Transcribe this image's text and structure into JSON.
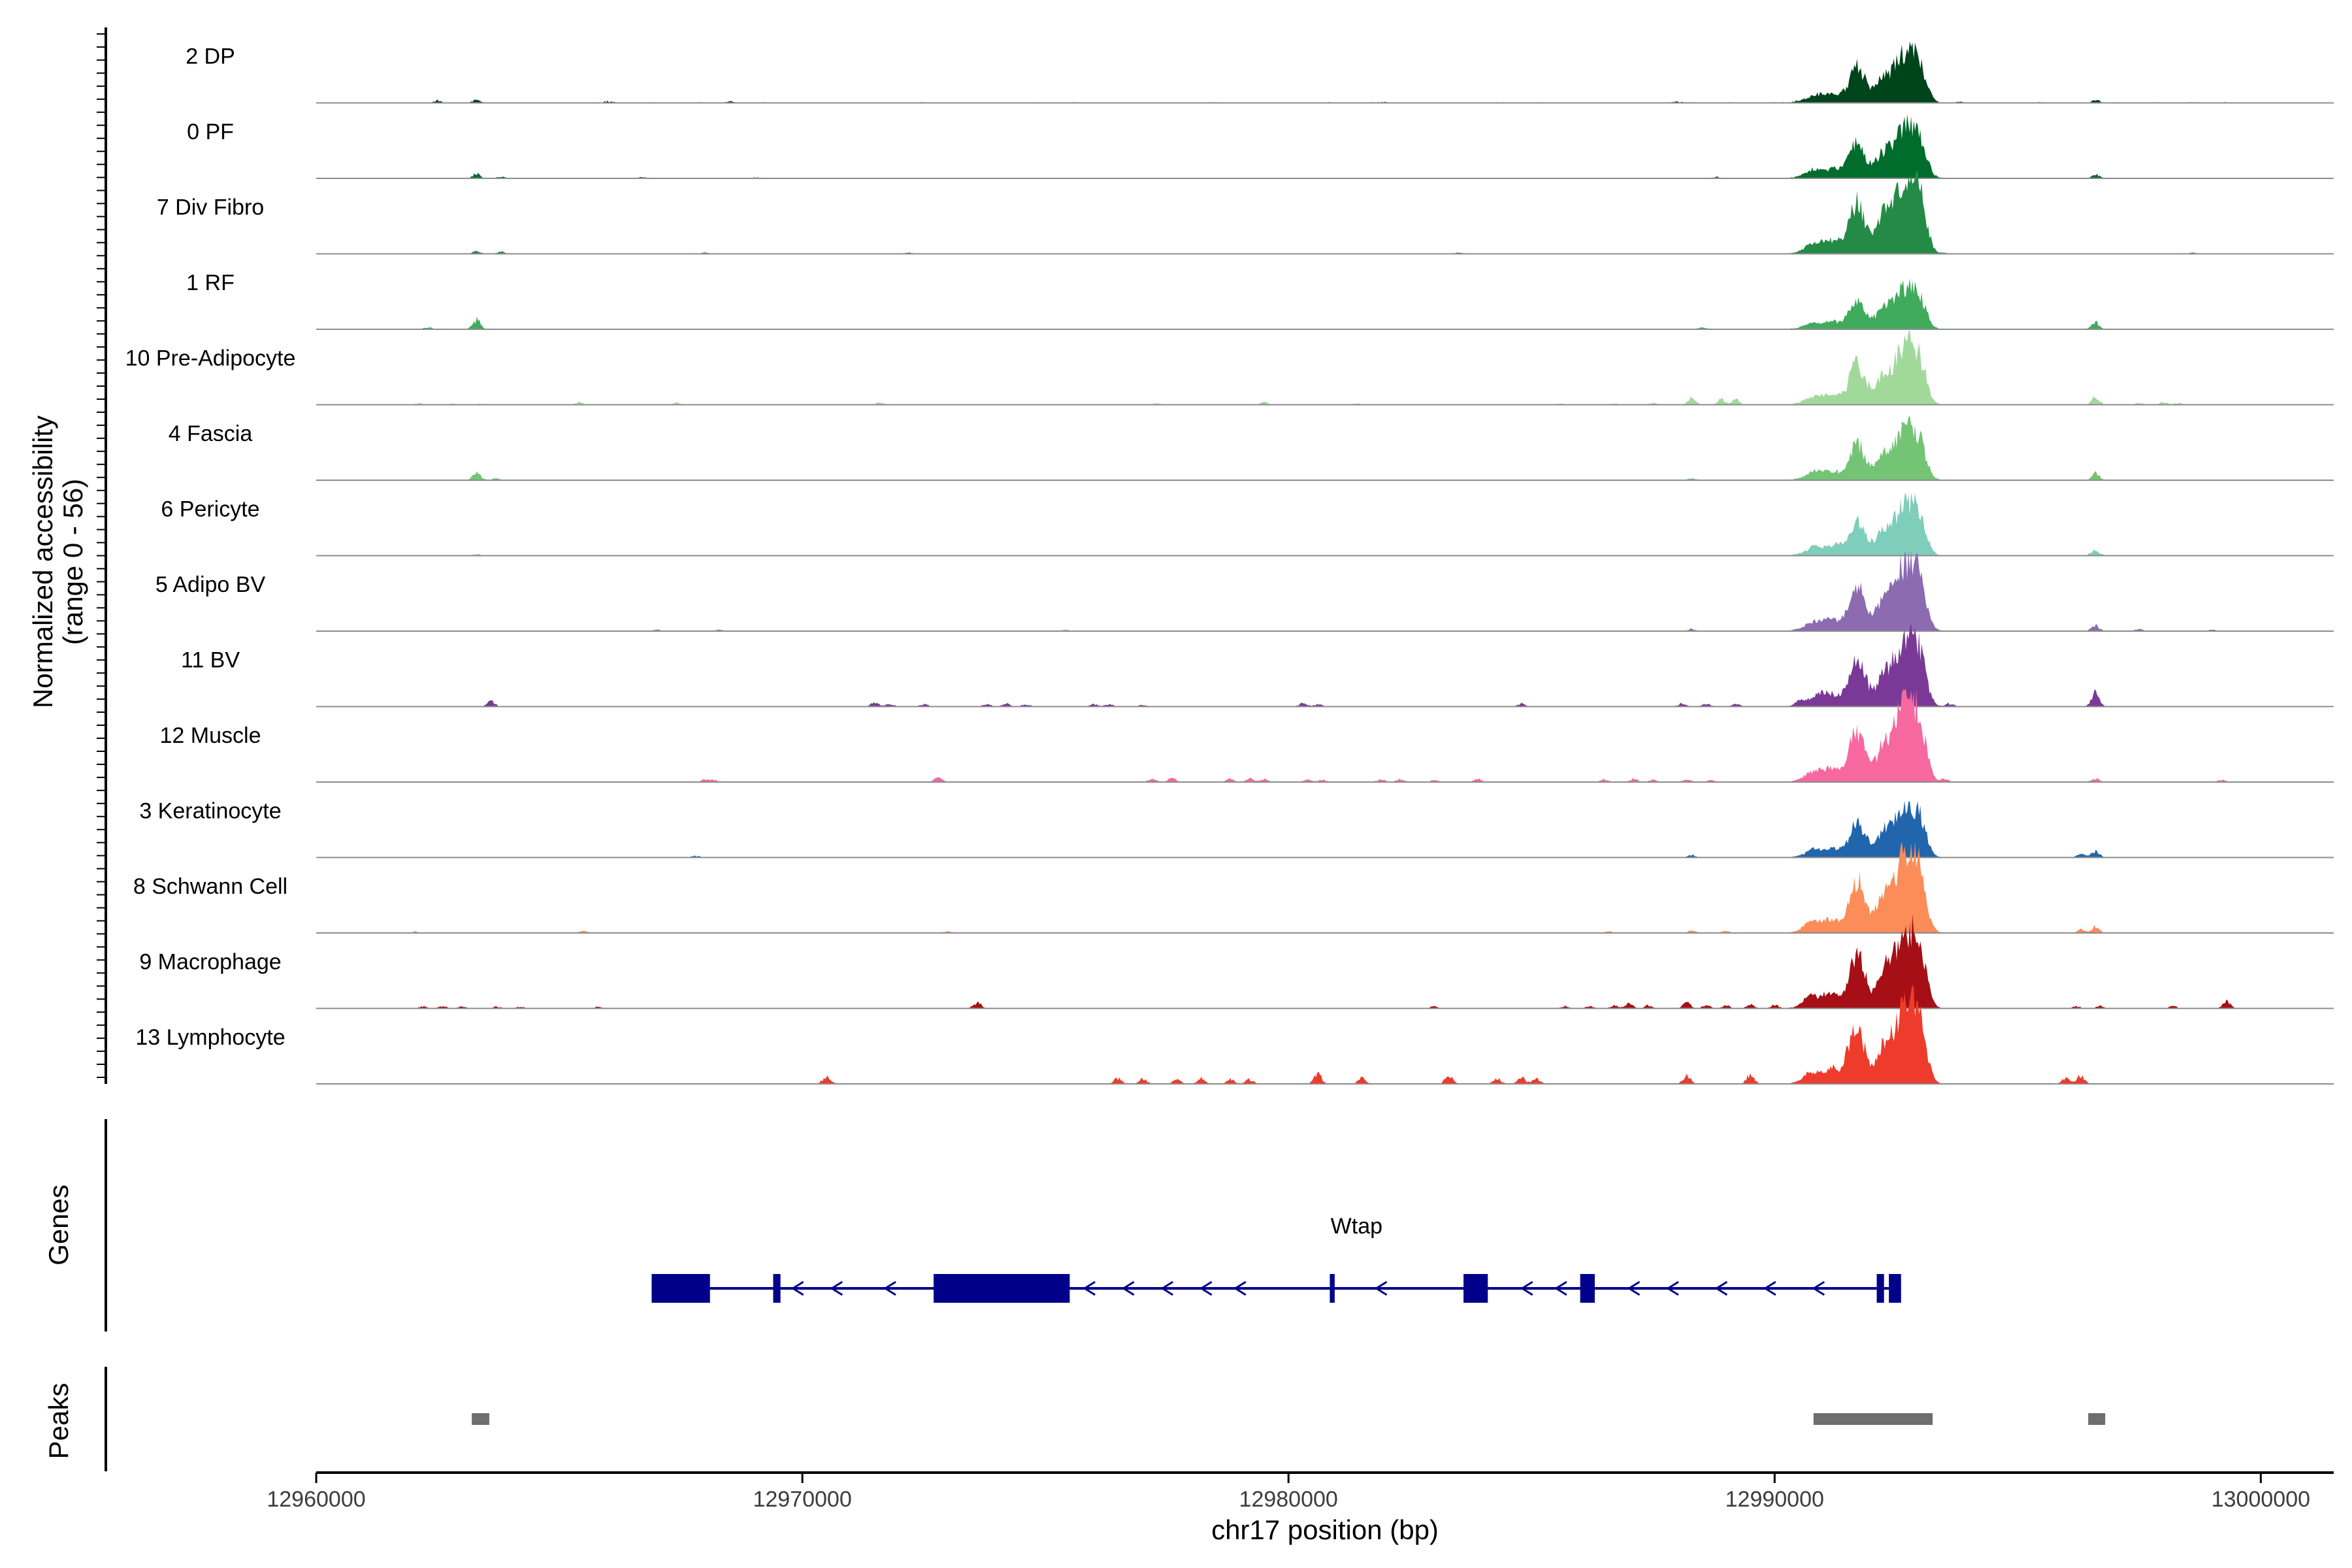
{
  "chart_data": {
    "type": "area",
    "title": "",
    "chromosome": "chr17",
    "xlabel": "chr17 position (bp)",
    "ylabel_line1": "Normalized accessibility",
    "ylabel_line2": "(range 0 - 56)",
    "y_range": [
      0,
      56
    ],
    "x_range": [
      12960000,
      13001500
    ],
    "x_ticks": [
      12960000,
      12970000,
      12980000,
      12990000,
      13000000
    ],
    "x_tick_labels": [
      "12960000",
      "12970000",
      "12980000",
      "12990000",
      "13000000"
    ],
    "tracks": [
      {
        "name": "2 DP",
        "color": "#00441b",
        "scale": 0.62,
        "bg": 0.1,
        "hot": 0.35,
        "spots": [
          [
            12962500,
            0.5
          ],
          [
            12963300,
            0.8
          ],
          [
            12966000,
            0.3
          ],
          [
            12968500,
            0.3
          ],
          [
            12982000,
            0.2
          ],
          [
            12988000,
            0.3
          ],
          [
            12993800,
            0.3
          ],
          [
            12996600,
            0.7
          ],
          [
            12999300,
            0.2
          ]
        ]
      },
      {
        "name": "0 PF",
        "color": "#006d2c",
        "scale": 0.65,
        "bg": 0.08,
        "hot": 0.3,
        "spots": [
          [
            12963300,
            1.1
          ],
          [
            12963800,
            0.4
          ],
          [
            12966700,
            0.3
          ],
          [
            12969000,
            0.2
          ],
          [
            12988800,
            0.3
          ],
          [
            12990800,
            0.6
          ],
          [
            12996600,
            1.0
          ]
        ]
      },
      {
        "name": "7 Div Fibro",
        "color": "#238b45",
        "scale": 0.95,
        "bg": 0.0,
        "hot": 0.25,
        "spots": [
          [
            12963300,
            0.8
          ],
          [
            12963800,
            0.5
          ],
          [
            12968000,
            0.3
          ],
          [
            12972200,
            0.3
          ],
          [
            12983500,
            0.3
          ],
          [
            12993500,
            0.3
          ],
          [
            12998600,
            0.3
          ]
        ]
      },
      {
        "name": "1 RF",
        "color": "#41ab5d",
        "scale": 0.5,
        "bg": 0.05,
        "hot": 0.28,
        "spots": [
          [
            12962300,
            0.5
          ],
          [
            12963300,
            2.4
          ],
          [
            12988500,
            0.4
          ],
          [
            12990700,
            0.3
          ],
          [
            12996600,
            1.6
          ]
        ]
      },
      {
        "name": "10 Pre-Adipocyte",
        "color": "#a1d99b",
        "scale": 0.72,
        "bg": 0.04,
        "hot": 0.28,
        "spots": [
          [
            12962100,
            0.4
          ],
          [
            12962800,
            0.3
          ],
          [
            12963400,
            0.3
          ],
          [
            12965400,
            0.6
          ],
          [
            12967400,
            0.5
          ],
          [
            12971600,
            0.6
          ],
          [
            12977300,
            0.3
          ],
          [
            12979500,
            0.6
          ],
          [
            12981400,
            0.3
          ],
          [
            12985600,
            0.3
          ],
          [
            12986700,
            0.3
          ],
          [
            12987500,
            0.4
          ],
          [
            12988300,
            1.6
          ],
          [
            12988900,
            1.4
          ],
          [
            12989200,
            1.3
          ],
          [
            12996600,
            2.0
          ],
          [
            12997500,
            0.4
          ],
          [
            12998000,
            0.6
          ],
          [
            12998300,
            0.4
          ]
        ]
      },
      {
        "name": "4 Fascia",
        "color": "#74c476",
        "scale": 0.62,
        "bg": 0.06,
        "hot": 0.28,
        "spots": [
          [
            12963300,
            1.6
          ],
          [
            12963700,
            0.5
          ],
          [
            12988300,
            0.4
          ],
          [
            12990800,
            0.5
          ],
          [
            12996600,
            1.8
          ]
        ]
      },
      {
        "name": "6 Pericyte",
        "color": "#7fcdbb",
        "scale": 0.62,
        "bg": 0.05,
        "hot": 0.3,
        "spots": [
          [
            12963300,
            0.4
          ],
          [
            12990800,
            0.6
          ],
          [
            12991300,
            1.0
          ],
          [
            12996600,
            1.6
          ]
        ]
      },
      {
        "name": "5 Adipo BV",
        "color": "#8c6bb1",
        "scale": 0.84,
        "bg": 0.04,
        "hot": 0.22,
        "spots": [
          [
            12967000,
            0.4
          ],
          [
            12968300,
            0.3
          ],
          [
            12975400,
            0.3
          ],
          [
            12988300,
            0.5
          ],
          [
            12993000,
            0.6
          ],
          [
            12996600,
            1.6
          ],
          [
            12997500,
            0.5
          ],
          [
            12999000,
            0.3
          ]
        ]
      },
      {
        "name": "11 BV",
        "color": "#7a3996",
        "scale": 0.82,
        "bg": 0.0,
        "hot": 0.4,
        "spots": [
          [
            12963600,
            1.3
          ],
          [
            12971500,
            1.1
          ],
          [
            12971800,
            0.7
          ],
          [
            12972500,
            0.6
          ],
          [
            12973800,
            0.7
          ],
          [
            12974200,
            0.7
          ],
          [
            12974600,
            0.6
          ],
          [
            12976000,
            0.6
          ],
          [
            12976300,
            0.6
          ],
          [
            12977000,
            0.4
          ],
          [
            12980300,
            1.0
          ],
          [
            12980600,
            0.7
          ],
          [
            12984800,
            0.8
          ],
          [
            12988100,
            0.8
          ],
          [
            12988600,
            0.8
          ],
          [
            12989200,
            0.7
          ],
          [
            12990500,
            0.9
          ],
          [
            12991000,
            1.3
          ],
          [
            12993600,
            0.8
          ],
          [
            12996600,
            3.4
          ]
        ]
      },
      {
        "name": "12 Muscle",
        "color": "#f768a1",
        "scale": 0.95,
        "bg": 0.0,
        "hot": 0.25,
        "spots": [
          [
            12968000,
            0.6
          ],
          [
            12968200,
            0.5
          ],
          [
            12972800,
            1.1
          ],
          [
            12977200,
            0.8
          ],
          [
            12977600,
            0.9
          ],
          [
            12978800,
            0.7
          ],
          [
            12979200,
            0.9
          ],
          [
            12979500,
            0.8
          ],
          [
            12980400,
            0.8
          ],
          [
            12980700,
            0.6
          ],
          [
            12981900,
            0.7
          ],
          [
            12982300,
            0.7
          ],
          [
            12983000,
            0.6
          ],
          [
            12983900,
            0.7
          ],
          [
            12986500,
            0.7
          ],
          [
            12987100,
            0.8
          ],
          [
            12987500,
            0.6
          ],
          [
            12988200,
            0.8
          ],
          [
            12988700,
            0.6
          ],
          [
            12993500,
            0.8
          ],
          [
            12996600,
            0.9
          ],
          [
            12999200,
            0.5
          ]
        ]
      },
      {
        "name": "3 Keratinocyte",
        "color": "#2166ac",
        "scale": 0.62,
        "bg": 0.05,
        "hot": 0.28,
        "spots": [
          [
            12967800,
            0.4
          ],
          [
            12988300,
            0.6
          ],
          [
            12990800,
            0.6
          ],
          [
            12996300,
            0.9
          ],
          [
            12996600,
            1.6
          ]
        ]
      },
      {
        "name": "8 Schwann Cell",
        "color": "#fc8d59",
        "scale": 0.95,
        "bg": 0.06,
        "hot": 0.3,
        "spots": [
          [
            12962000,
            0.4
          ],
          [
            12965500,
            0.6
          ],
          [
            12973000,
            0.4
          ],
          [
            12986600,
            0.4
          ],
          [
            12988300,
            0.6
          ],
          [
            12989000,
            0.5
          ],
          [
            12990700,
            0.8
          ],
          [
            12996300,
            0.8
          ],
          [
            12996600,
            1.5
          ]
        ]
      },
      {
        "name": "9 Macrophage",
        "color": "#a50f15",
        "scale": 0.96,
        "bg": 0.0,
        "hot": 0.35,
        "spots": [
          [
            12962200,
            0.5
          ],
          [
            12962600,
            0.6
          ],
          [
            12963000,
            0.5
          ],
          [
            12963700,
            0.5
          ],
          [
            12964200,
            0.4
          ],
          [
            12965800,
            0.4
          ],
          [
            12973600,
            1.5
          ],
          [
            12983000,
            0.5
          ],
          [
            12985700,
            0.6
          ],
          [
            12986200,
            0.5
          ],
          [
            12986700,
            0.7
          ],
          [
            12987000,
            1.3
          ],
          [
            12987400,
            0.8
          ],
          [
            12988200,
            1.5
          ],
          [
            12988600,
            0.8
          ],
          [
            12989000,
            0.8
          ],
          [
            12989500,
            0.9
          ],
          [
            12990000,
            0.9
          ],
          [
            12990700,
            1.5
          ],
          [
            12996200,
            0.6
          ],
          [
            12996700,
            0.6
          ],
          [
            12998200,
            0.6
          ],
          [
            12999300,
            1.8
          ]
        ]
      },
      {
        "name": "13 Lymphocyte",
        "color": "#ef3b2c",
        "scale": 1.0,
        "bg": 0.0,
        "hot": 0.0,
        "spots": [
          [
            12970500,
            2.0
          ],
          [
            12976500,
            1.5
          ],
          [
            12977000,
            1.4
          ],
          [
            12977700,
            1.0
          ],
          [
            12978200,
            1.4
          ],
          [
            12978800,
            1.3
          ],
          [
            12979200,
            1.1
          ],
          [
            12980600,
            2.4
          ],
          [
            12981500,
            1.5
          ],
          [
            12983300,
            2.1
          ],
          [
            12984300,
            1.3
          ],
          [
            12984800,
            1.5
          ],
          [
            12985100,
            1.3
          ],
          [
            12988200,
            2.0
          ],
          [
            12989500,
            2.3
          ],
          [
            12990700,
            1.3
          ],
          [
            12991200,
            1.5
          ],
          [
            12991500,
            2.1
          ],
          [
            12996000,
            1.5
          ],
          [
            12996300,
            2.1
          ]
        ]
      }
    ],
    "peak_shape": {
      "centers": [
        12991700,
        12992300,
        12992600,
        12992800,
        12993000,
        12990800,
        12991200
      ],
      "heights": [
        24,
        20,
        16,
        26,
        18,
        4,
        5
      ],
      "widths": [
        220,
        260,
        180,
        240,
        200,
        300,
        300
      ]
    },
    "genes": {
      "label": "Genes",
      "gene_name": "Wtap",
      "strand": "-",
      "color": "#00008b",
      "span": [
        12966900,
        12992600
      ],
      "exons": [
        [
          12966900,
          12968100,
          "utr"
        ],
        [
          12969400,
          12969550,
          "cds"
        ],
        [
          12972700,
          12975500,
          "cds"
        ],
        [
          12980850,
          12980950,
          "cds"
        ],
        [
          12983600,
          12984100,
          "cds"
        ],
        [
          12986000,
          12986300,
          "cds"
        ],
        [
          12992100,
          12992250,
          "cds"
        ],
        [
          12992350,
          12992600,
          "cds"
        ]
      ],
      "arrows": [
        12969900,
        12970700,
        12971800,
        12975900,
        12976700,
        12977500,
        12978300,
        12979000,
        12981900,
        12984900,
        12985600,
        12987100,
        12987900,
        12988900,
        12989900,
        12990900
      ]
    },
    "peaks": {
      "label": "Peaks",
      "color": "#6e6e6e",
      "regions": [
        [
          12963200,
          12963560
        ],
        [
          12990800,
          12993250
        ],
        [
          12996450,
          12996800
        ]
      ]
    },
    "grid": false,
    "legend": "none"
  }
}
